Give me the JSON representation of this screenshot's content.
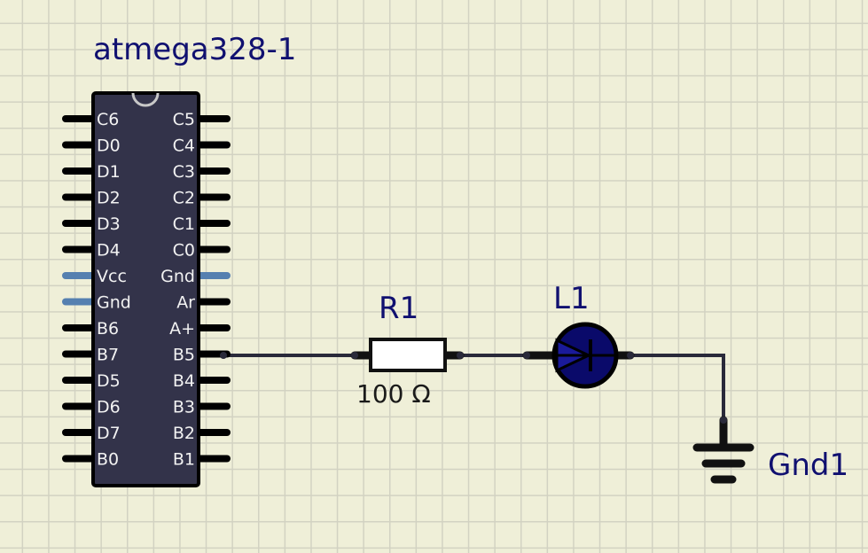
{
  "chip": {
    "name": "atmega328-1",
    "left_pins": [
      {
        "label": "C6",
        "type": "io"
      },
      {
        "label": "D0",
        "type": "io"
      },
      {
        "label": "D1",
        "type": "io"
      },
      {
        "label": "D2",
        "type": "io"
      },
      {
        "label": "D3",
        "type": "io"
      },
      {
        "label": "D4",
        "type": "io"
      },
      {
        "label": "Vcc",
        "type": "power"
      },
      {
        "label": "Gnd",
        "type": "power"
      },
      {
        "label": "B6",
        "type": "io"
      },
      {
        "label": "B7",
        "type": "io"
      },
      {
        "label": "D5",
        "type": "io"
      },
      {
        "label": "D6",
        "type": "io"
      },
      {
        "label": "D7",
        "type": "io"
      },
      {
        "label": "B0",
        "type": "io"
      }
    ],
    "right_pins": [
      {
        "label": "C5",
        "type": "io"
      },
      {
        "label": "C4",
        "type": "io"
      },
      {
        "label": "C3",
        "type": "io"
      },
      {
        "label": "C2",
        "type": "io"
      },
      {
        "label": "C1",
        "type": "io"
      },
      {
        "label": "C0",
        "type": "io"
      },
      {
        "label": "Gnd",
        "type": "power"
      },
      {
        "label": "Ar",
        "type": "io"
      },
      {
        "label": "A+",
        "type": "io"
      },
      {
        "label": "B5",
        "type": "io"
      },
      {
        "label": "B4",
        "type": "io"
      },
      {
        "label": "B3",
        "type": "io"
      },
      {
        "label": "B2",
        "type": "io"
      },
      {
        "label": "B1",
        "type": "io"
      }
    ]
  },
  "resistor": {
    "name": "R1",
    "value": "100 Ω"
  },
  "led": {
    "name": "L1"
  },
  "ground": {
    "name": "Gnd1"
  },
  "colors": {
    "background": "#efefd8",
    "grid": "#d2d2c2",
    "chip_body": "#33334a",
    "wire": "#2a2a3a",
    "power_pin": "#5580b0",
    "label": "#101070",
    "led_fill": "#0a0a6a"
  }
}
